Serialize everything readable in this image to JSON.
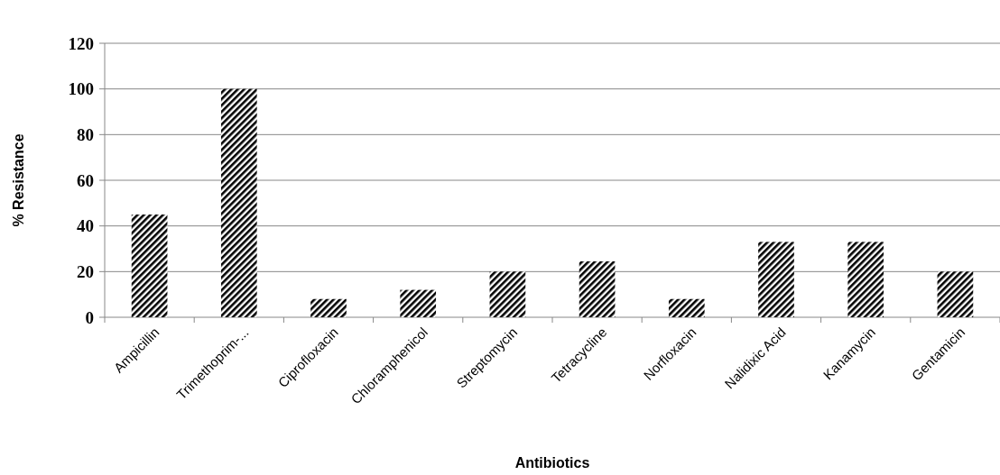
{
  "chart_data": {
    "type": "bar",
    "xlabel": "Antibiotics",
    "ylabel": "% Resistance",
    "categories": [
      "Ampicillin",
      "Trimethoprim-...",
      "Ciprofloxacin",
      "Chloramphenicol",
      "Streptomycin",
      "Tetracycline",
      "Norfloxacin",
      "Nalidixic Acid",
      "Kanamycin",
      "Gentamicin"
    ],
    "values": [
      45,
      100,
      8,
      12,
      20,
      24.5,
      8,
      33,
      33,
      20
    ],
    "color": "#000000",
    "ylim": [
      0,
      120
    ],
    "yticks": [
      0,
      20,
      40,
      60,
      80,
      100,
      120
    ],
    "grid": "y"
  }
}
